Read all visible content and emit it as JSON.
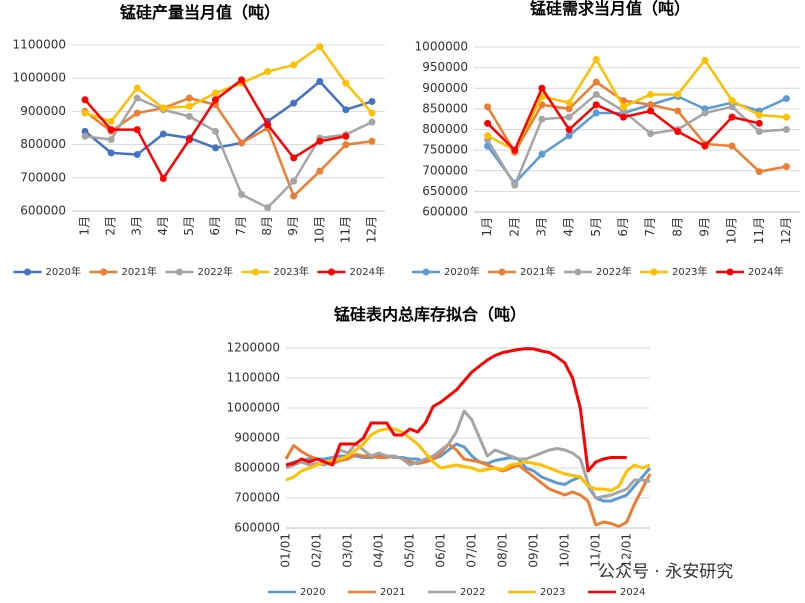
{
  "chart_data": [
    {
      "type": "line",
      "title": "锰硅产量当月值（吨）",
      "markers": true,
      "categories": [
        "1月",
        "2月",
        "3月",
        "4月",
        "5月",
        "6月",
        "7月",
        "8月",
        "9月",
        "10月",
        "11月",
        "12月"
      ],
      "ylim": [
        600000,
        1100000
      ],
      "yticks": [
        600000,
        700000,
        800000,
        900000,
        1000000,
        1100000
      ],
      "series": [
        {
          "name": "2020年",
          "color": "#4472c4",
          "values": [
            840000,
            775000,
            770000,
            832000,
            820000,
            790000,
            805000,
            870000,
            925000,
            990000,
            905000,
            930000
          ]
        },
        {
          "name": "2021年",
          "color": "#ed7d31",
          "values": [
            900000,
            840000,
            895000,
            910000,
            940000,
            920000,
            805000,
            850000,
            645000,
            720000,
            800000,
            810000
          ]
        },
        {
          "name": "2022年",
          "color": "#a5a5a5",
          "values": [
            825000,
            815000,
            940000,
            905000,
            885000,
            840000,
            650000,
            610000,
            690000,
            820000,
            830000,
            868000
          ]
        },
        {
          "name": "2023年",
          "color": "#ffc000",
          "values": [
            895000,
            870000,
            970000,
            910000,
            915000,
            955000,
            985000,
            1020000,
            1040000,
            1095000,
            985000,
            895000
          ]
        },
        {
          "name": "2024年",
          "color": "#ff0000",
          "values": [
            935000,
            845000,
            845000,
            698000,
            815000,
            935000,
            995000,
            860000,
            760000,
            810000,
            825000,
            null
          ]
        }
      ]
    },
    {
      "type": "line",
      "title": "锰硅需求当月值（吨）",
      "markers": true,
      "categories": [
        "1月",
        "2月",
        "3月",
        "4月",
        "5月",
        "6月",
        "7月",
        "8月",
        "9月",
        "10月",
        "11月",
        "12月"
      ],
      "ylim": [
        600000,
        1000000
      ],
      "yticks": [
        600000,
        650000,
        700000,
        750000,
        800000,
        850000,
        900000,
        950000,
        1000000
      ],
      "series": [
        {
          "name": "2020年",
          "color": "#5b9bd5",
          "values": [
            760000,
            670000,
            740000,
            785000,
            840000,
            840000,
            860000,
            880000,
            850000,
            865000,
            845000,
            875000
          ]
        },
        {
          "name": "2021年",
          "color": "#ed7d31",
          "values": [
            855000,
            745000,
            860000,
            850000,
            915000,
            870000,
            860000,
            845000,
            765000,
            760000,
            698000,
            710000
          ]
        },
        {
          "name": "2022年",
          "color": "#a5a5a5",
          "values": [
            775000,
            665000,
            825000,
            830000,
            885000,
            845000,
            790000,
            800000,
            840000,
            855000,
            795000,
            800000
          ]
        },
        {
          "name": "2023年",
          "color": "#ffc000",
          "values": [
            785000,
            750000,
            880000,
            865000,
            970000,
            855000,
            885000,
            885000,
            968000,
            870000,
            835000,
            830000
          ]
        },
        {
          "name": "2024年",
          "color": "#ff0000",
          "values": [
            815000,
            750000,
            900000,
            800000,
            860000,
            830000,
            845000,
            795000,
            760000,
            830000,
            815000,
            null
          ]
        }
      ]
    },
    {
      "type": "line",
      "title": "锰硅表内总库存拟合（吨）",
      "markers": false,
      "categories": [
        "01/01",
        null,
        null,
        null,
        "02/01",
        null,
        null,
        null,
        "03/01",
        null,
        null,
        null,
        "04/01",
        null,
        null,
        null,
        "05/01",
        null,
        null,
        null,
        "06/01",
        null,
        null,
        null,
        "07/01",
        null,
        null,
        null,
        "08/01",
        null,
        null,
        null,
        "09/01",
        null,
        null,
        null,
        "10/01",
        null,
        null,
        null,
        "11/01",
        null,
        null,
        null,
        "12/01",
        null,
        null,
        null
      ],
      "ylim": [
        600000,
        1200000
      ],
      "yticks": [
        600000,
        700000,
        800000,
        900000,
        1000000,
        1100000,
        1200000
      ],
      "watermark": "公众号 · 永安研究",
      "series": [
        {
          "name": "2020",
          "color": "#5b9bd5",
          "values": [
            810000,
            820000,
            825000,
            830000,
            830000,
            830000,
            835000,
            840000,
            840000,
            840000,
            835000,
            835000,
            840000,
            840000,
            835000,
            835000,
            830000,
            830000,
            820000,
            830000,
            840000,
            860000,
            880000,
            870000,
            840000,
            820000,
            815000,
            825000,
            830000,
            835000,
            830000,
            800000,
            790000,
            770000,
            760000,
            750000,
            745000,
            760000,
            770000,
            740000,
            700000,
            690000,
            690000,
            700000,
            710000,
            740000,
            770000,
            800000
          ]
        },
        {
          "name": "2021",
          "color": "#ed7d31",
          "values": [
            830000,
            875000,
            855000,
            840000,
            830000,
            820000,
            815000,
            825000,
            830000,
            845000,
            840000,
            840000,
            835000,
            835000,
            840000,
            830000,
            820000,
            815000,
            820000,
            830000,
            850000,
            880000,
            860000,
            830000,
            825000,
            820000,
            810000,
            800000,
            790000,
            800000,
            810000,
            790000,
            770000,
            750000,
            730000,
            720000,
            710000,
            720000,
            710000,
            690000,
            610000,
            620000,
            615000,
            605000,
            620000,
            680000,
            730000,
            780000
          ]
        },
        {
          "name": "2022",
          "color": "#a5a5a5",
          "values": [
            800000,
            810000,
            820000,
            810000,
            815000,
            810000,
            830000,
            860000,
            850000,
            880000,
            860000,
            840000,
            850000,
            840000,
            840000,
            830000,
            810000,
            820000,
            830000,
            840000,
            860000,
            880000,
            920000,
            990000,
            960000,
            900000,
            840000,
            860000,
            850000,
            840000,
            830000,
            830000,
            840000,
            850000,
            860000,
            865000,
            860000,
            850000,
            830000,
            750000,
            700000,
            705000,
            710000,
            720000,
            730000,
            760000,
            760000,
            755000
          ]
        },
        {
          "name": "2023",
          "color": "#ffc000",
          "values": [
            760000,
            770000,
            790000,
            800000,
            810000,
            820000,
            825000,
            830000,
            840000,
            860000,
            880000,
            910000,
            925000,
            930000,
            930000,
            920000,
            900000,
            880000,
            850000,
            820000,
            800000,
            805000,
            810000,
            805000,
            800000,
            790000,
            795000,
            800000,
            795000,
            810000,
            815000,
            820000,
            815000,
            810000,
            800000,
            790000,
            780000,
            775000,
            770000,
            740000,
            730000,
            730000,
            725000,
            740000,
            790000,
            810000,
            800000,
            810000
          ]
        },
        {
          "name": "2024",
          "color": "#ff0000",
          "values": [
            810000,
            815000,
            830000,
            820000,
            830000,
            820000,
            810000,
            880000,
            880000,
            880000,
            900000,
            950000,
            950000,
            950000,
            910000,
            910000,
            930000,
            920000,
            950000,
            1005000,
            1020000,
            1040000,
            1060000,
            1090000,
            1120000,
            1140000,
            1160000,
            1175000,
            1185000,
            1190000,
            1195000,
            1198000,
            1197000,
            1190000,
            1185000,
            1170000,
            1150000,
            1100000,
            1000000,
            790000,
            820000,
            830000,
            835000,
            835000,
            835000,
            null,
            null,
            null
          ]
        }
      ]
    }
  ]
}
